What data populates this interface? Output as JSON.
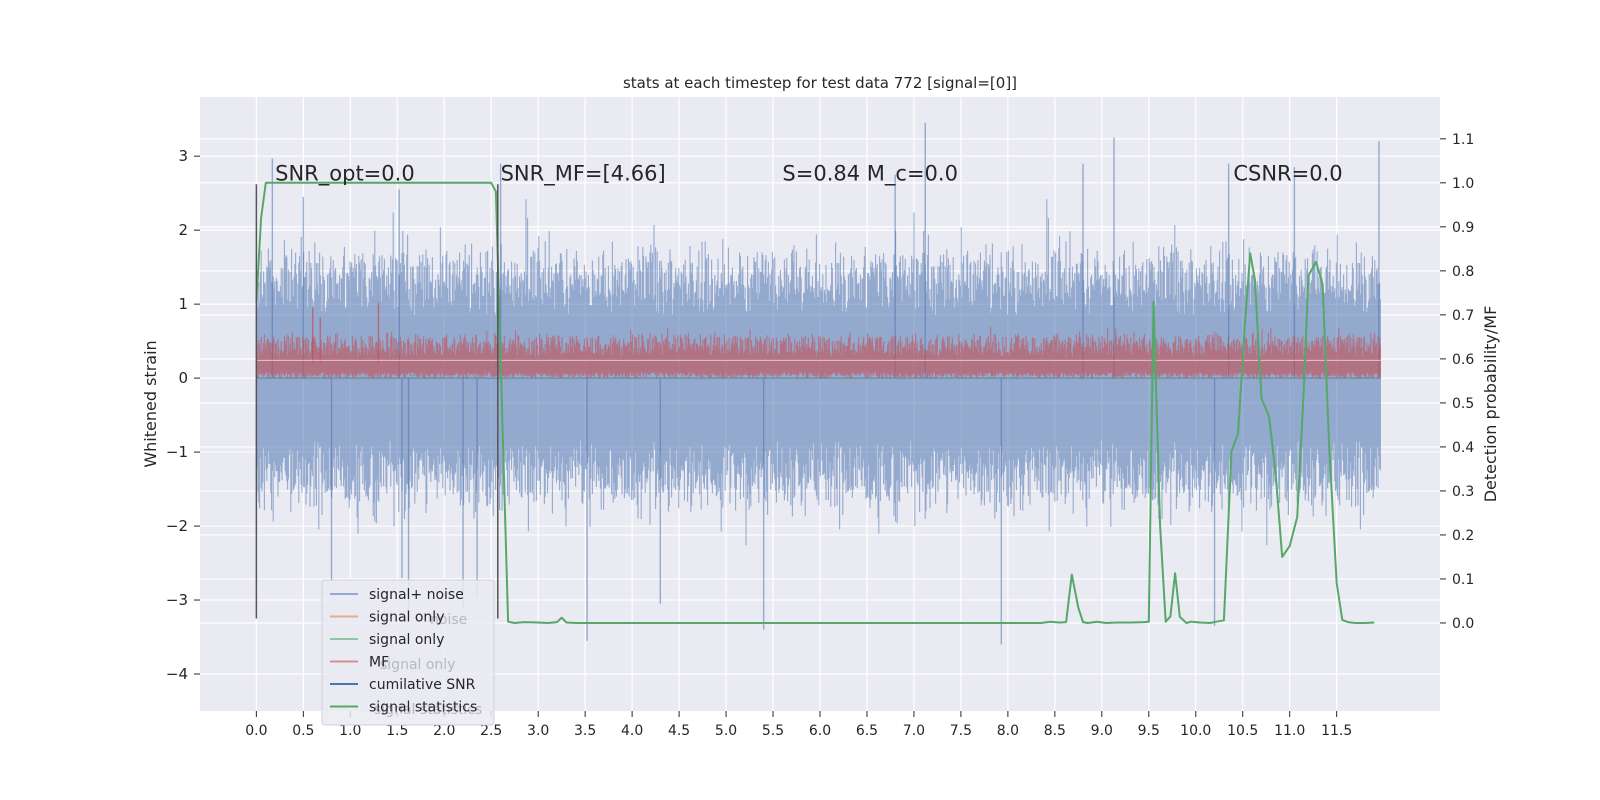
{
  "chart_data": {
    "type": "line",
    "title": "stats at each timestep for test data 772 [signal=[0]]",
    "xlabel": "",
    "ylabel_left": "Whitened strain",
    "ylabel_right": "Detection probability/MF",
    "xlim": [
      -0.6,
      12.6
    ],
    "ylim_left": [
      -4.5,
      3.8
    ],
    "ylim_right": [
      -0.2,
      1.195
    ],
    "x_ticks": [
      0.0,
      0.5,
      1.0,
      1.5,
      2.0,
      2.5,
      3.0,
      3.5,
      4.0,
      4.5,
      5.0,
      5.5,
      6.0,
      6.5,
      7.0,
      7.5,
      8.0,
      8.5,
      9.0,
      9.5,
      10.0,
      10.5,
      11.0,
      11.5
    ],
    "x_tick_labels": [
      "0.0",
      "0.5",
      "1.0",
      "1.5",
      "2.0",
      "2.5",
      "3.0",
      "3.5",
      "4.0",
      "4.5",
      "5.0",
      "5.5",
      "6.0",
      "6.5",
      "7.0",
      "7.5",
      "8.0",
      "8.5",
      "9.0",
      "9.5",
      "10.0",
      "10.5",
      "11.0",
      "11.5"
    ],
    "y_left_ticks": [
      -4,
      -3,
      -2,
      -1,
      0,
      1,
      2,
      3
    ],
    "y_left_tick_labels": [
      "−4",
      "−3",
      "−2",
      "−1",
      "0",
      "1",
      "2",
      "3"
    ],
    "y_right_ticks": [
      0.0,
      0.1,
      0.2,
      0.3,
      0.4,
      0.5,
      0.6,
      0.7,
      0.8,
      0.9,
      1.0,
      1.1
    ],
    "y_right_tick_labels": [
      "0.0",
      "0.1",
      "0.2",
      "0.3",
      "0.4",
      "0.5",
      "0.6",
      "0.7",
      "0.8",
      "0.9",
      "1.0",
      "1.1"
    ],
    "grid": true,
    "legend_placement": "lower-left",
    "annotations": [
      {
        "text": "SNR_opt=0.0",
        "x": 0.2,
        "y": 2.67
      },
      {
        "text": "SNR_MF=[4.66]",
        "x": 2.6,
        "y": 2.67
      },
      {
        "text": "S=0.84   M_c=0.0",
        "x": 5.6,
        "y": 2.67
      },
      {
        "text": "CSNR=0.0",
        "x": 10.4,
        "y": 2.67
      }
    ],
    "vlines": [
      {
        "x": 0.0,
        "y_range": [
          -3.25,
          2.62
        ],
        "color": "#555555"
      },
      {
        "x": 2.57,
        "y_range": [
          -3.25,
          2.62
        ],
        "color": "#555555"
      }
    ],
    "series": [
      {
        "name": "signal+ noise",
        "color": "#4c72b0",
        "axis": "left",
        "style": "noise",
        "x_range": [
          0.0,
          11.97
        ],
        "envelope": [
          -1.5,
          1.5
        ],
        "peaks": [
          {
            "x": 0.17,
            "y": 2.97
          },
          {
            "x": 0.5,
            "y": 2.45
          },
          {
            "x": 1.52,
            "y": 2.55
          },
          {
            "x": 2.6,
            "y": 2.9
          },
          {
            "x": 3.52,
            "y": -3.55
          },
          {
            "x": 4.3,
            "y": -3.05
          },
          {
            "x": 5.4,
            "y": -3.4
          },
          {
            "x": 6.8,
            "y": 2.75
          },
          {
            "x": 7.12,
            "y": 3.45
          },
          {
            "x": 7.93,
            "y": -3.6
          },
          {
            "x": 8.8,
            "y": 2.9
          },
          {
            "x": 9.13,
            "y": 3.25
          },
          {
            "x": 10.2,
            "y": -3.35
          },
          {
            "x": 10.35,
            "y": 2.9
          },
          {
            "x": 11.05,
            "y": 2.85
          },
          {
            "x": 11.95,
            "y": 3.2
          },
          {
            "x": 2.35,
            "y": -2.95
          },
          {
            "x": 1.55,
            "y": -2.7
          },
          {
            "x": 0.8,
            "y": -2.75
          },
          {
            "x": 2.2,
            "y": -3.1
          },
          {
            "x": 1.62,
            "y": -3.15
          }
        ]
      },
      {
        "name": "signal only",
        "color": "#dd8452",
        "axis": "left",
        "style": "flat",
        "y": 0.0
      },
      {
        "name": "signal only",
        "color": "#55a868",
        "axis": "left",
        "style": "flat",
        "y": 0.0
      },
      {
        "name": "MF",
        "color": "#c44e52",
        "axis": "left",
        "style": "band",
        "x_range": [
          0.0,
          11.97
        ],
        "band": [
          0.0,
          0.55
        ],
        "peaks": [
          {
            "x": 0.6,
            "y": 0.95
          },
          {
            "x": 1.3,
            "y": 1.02
          },
          {
            "x": 0.68,
            "y": 0.82
          }
        ]
      },
      {
        "name": "cumilative SNR",
        "color": "#4c72b0",
        "axis": "left",
        "style": "flat",
        "y": 0.0
      },
      {
        "name": "signal statistics",
        "color": "#55a868",
        "axis": "right",
        "style": "line",
        "x": [
          0.0,
          0.05,
          0.1,
          0.2,
          0.5,
          1.0,
          1.5,
          2.0,
          2.4,
          2.5,
          2.55,
          2.6,
          2.68,
          2.75,
          2.85,
          3.0,
          3.1,
          3.2,
          3.25,
          3.3,
          3.4,
          3.6,
          4.0,
          5.0,
          6.0,
          7.0,
          8.0,
          8.35,
          8.45,
          8.55,
          8.62,
          8.68,
          8.75,
          8.8,
          8.85,
          8.95,
          9.05,
          9.15,
          9.3,
          9.45,
          9.5,
          9.55,
          9.62,
          9.68,
          9.73,
          9.78,
          9.83,
          9.9,
          9.95,
          10.05,
          10.15,
          10.22,
          10.3,
          10.38,
          10.45,
          10.52,
          10.58,
          10.63,
          10.7,
          10.78,
          10.85,
          10.92,
          11.0,
          11.08,
          11.15,
          11.2,
          11.28,
          11.35,
          11.42,
          11.5,
          11.56,
          11.62,
          11.7,
          11.8,
          11.9
        ],
        "y": [
          0.73,
          0.92,
          1.0,
          1.0,
          1.0,
          1.0,
          1.0,
          1.0,
          1.0,
          1.0,
          0.98,
          0.6,
          0.003,
          0.0,
          0.002,
          0.001,
          0.0,
          0.002,
          0.012,
          0.001,
          0.0,
          0.0,
          0.0,
          0.0,
          0.0,
          0.0,
          0.0,
          0.0,
          0.003,
          0.001,
          0.002,
          0.11,
          0.035,
          0.002,
          0.0,
          0.003,
          0.0,
          0.001,
          0.001,
          0.002,
          0.003,
          0.73,
          0.22,
          0.003,
          0.015,
          0.113,
          0.014,
          0.0,
          0.003,
          0.001,
          0.0,
          0.003,
          0.006,
          0.39,
          0.43,
          0.67,
          0.84,
          0.78,
          0.51,
          0.47,
          0.34,
          0.15,
          0.175,
          0.24,
          0.53,
          0.79,
          0.82,
          0.77,
          0.4,
          0.09,
          0.007,
          0.002,
          0.0,
          0.0,
          0.001
        ]
      }
    ],
    "legend_entries": [
      {
        "label": "signal+ noise",
        "color": "#4c72b0",
        "alpha": 0.55
      },
      {
        "label": "signal only",
        "color": "#dd8452",
        "alpha": 0.6
      },
      {
        "label": "signal only",
        "color": "#55a868",
        "alpha": 0.6
      },
      {
        "label": "MF",
        "color": "#c44e52",
        "alpha": 0.6
      },
      {
        "label": "cumilative SNR",
        "color": "#4c72b0",
        "alpha": 1.0
      },
      {
        "label": "signal statistics",
        "color": "#55a868",
        "alpha": 1.0
      }
    ],
    "legend_ghost_labels": [
      "noise",
      "signal only",
      "signal statistics"
    ]
  }
}
